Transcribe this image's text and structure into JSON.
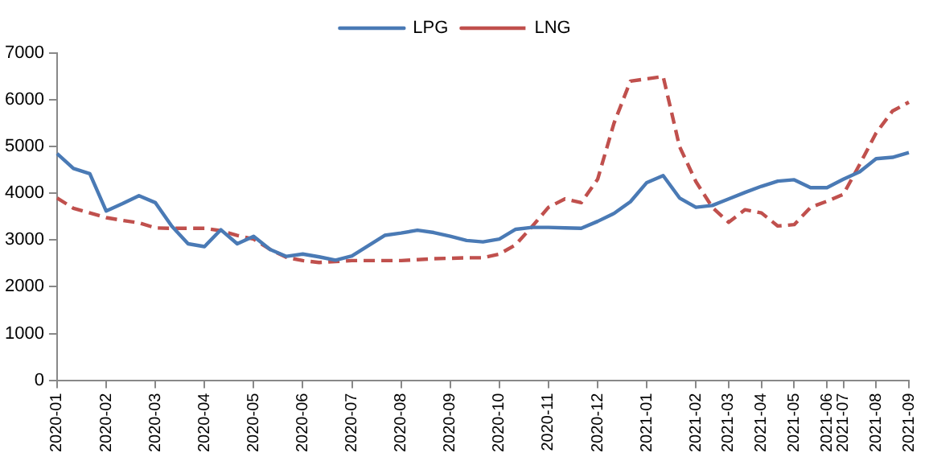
{
  "chart_data": {
    "type": "line",
    "categories": [
      "2020-01",
      null,
      null,
      "2020-02",
      null,
      null,
      "2020-03",
      null,
      null,
      "2020-04",
      null,
      null,
      "2020-05",
      null,
      null,
      "2020-06",
      null,
      null,
      "2020-07",
      null,
      null,
      "2020-08",
      null,
      null,
      "2020-09",
      null,
      null,
      "2020-10",
      null,
      null,
      "2020-11",
      null,
      null,
      "2020-12",
      null,
      null,
      "2021-01",
      null,
      null,
      "2021-02",
      null,
      "2021-03",
      null,
      "2021-04",
      null,
      "2021-05",
      null,
      "2021-06",
      "2021-07",
      null,
      "2021-08",
      null,
      "2021-09"
    ],
    "series": [
      {
        "name": "LPG",
        "color": "#4a7ab5",
        "line_style": "solid",
        "values": [
          4850,
          4530,
          4420,
          3620,
          3780,
          3950,
          3800,
          3300,
          2920,
          2860,
          3220,
          2920,
          3080,
          2800,
          2650,
          2700,
          2640,
          2570,
          2660,
          2880,
          3100,
          3150,
          3210,
          3160,
          3080,
          2990,
          2960,
          3020,
          3230,
          3270,
          3270,
          3260,
          3250,
          3400,
          3570,
          3820,
          4230,
          4380,
          3900,
          3700,
          3740,
          3880,
          4020,
          4150,
          4260,
          4290,
          4120,
          4120,
          4300,
          4460,
          4740,
          4770,
          4870
        ]
      },
      {
        "name": "LNG",
        "color": "#c0504d",
        "line_style": "dashed",
        "values": [
          3900,
          3680,
          3580,
          3480,
          3420,
          3370,
          3260,
          3250,
          3250,
          3250,
          3200,
          3100,
          3020,
          2800,
          2630,
          2560,
          2520,
          2540,
          2560,
          2560,
          2560,
          2560,
          2580,
          2600,
          2610,
          2620,
          2620,
          2700,
          2900,
          3290,
          3700,
          3880,
          3800,
          4300,
          5500,
          6400,
          6450,
          6500,
          5000,
          4250,
          3700,
          3380,
          3650,
          3580,
          3300,
          3330,
          3700,
          3830,
          3980,
          4620,
          5290,
          5760,
          5950
        ]
      }
    ],
    "ylim": [
      0,
      7000
    ],
    "yticks": [
      0,
      1000,
      2000,
      3000,
      4000,
      5000,
      6000,
      7000
    ],
    "grid": false,
    "legend": "top",
    "marker": "none"
  }
}
